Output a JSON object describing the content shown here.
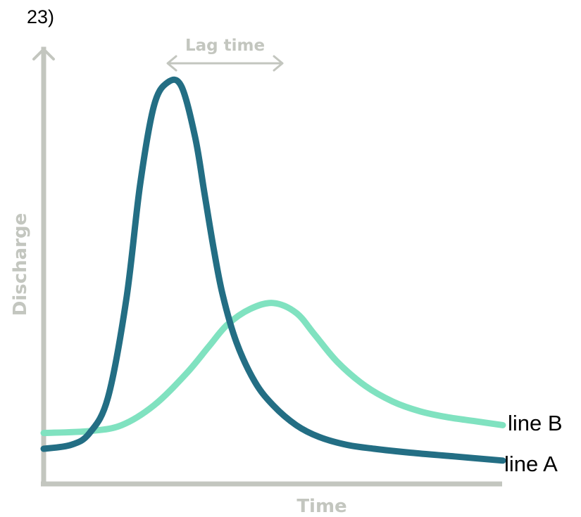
{
  "question_number": "23)",
  "colors": {
    "axis": "#c3c6bf",
    "line_a": "#236e84",
    "line_b": "#80e2c0",
    "text": "#000000"
  },
  "chart_data": {
    "type": "line",
    "title": "",
    "xlabel": "Time",
    "ylabel": "Discharge",
    "xlim": [
      0,
      100
    ],
    "ylim": [
      0,
      100
    ],
    "grid": false,
    "ticks": false,
    "series": [
      {
        "name": "line A",
        "color": "#236e84",
        "x": [
          0,
          6,
          10,
          14,
          18,
          21,
          24,
          27,
          30,
          33,
          35,
          37,
          39,
          42,
          46,
          50,
          55,
          60,
          66,
          72,
          80,
          90,
          100
        ],
        "y": [
          5,
          6,
          9,
          18,
          43,
          72,
          92,
          98,
          97,
          84,
          70,
          56,
          44,
          32,
          22,
          16,
          11,
          8,
          6,
          5,
          4,
          3,
          2
        ]
      },
      {
        "name": "line B",
        "color": "#80e2c0",
        "x": [
          0,
          10,
          17,
          24,
          31,
          36,
          40,
          45,
          50,
          55,
          59,
          64,
          70,
          76,
          82,
          88,
          94,
          100
        ],
        "y": [
          9,
          9.5,
          11,
          16,
          24,
          31,
          36.5,
          40.5,
          42,
          39.5,
          34,
          27,
          21,
          17,
          14.5,
          13,
          12,
          11
        ]
      }
    ],
    "annotations": [
      {
        "text": "Lag time",
        "from_x": 27,
        "to_x": 52
      }
    ]
  }
}
